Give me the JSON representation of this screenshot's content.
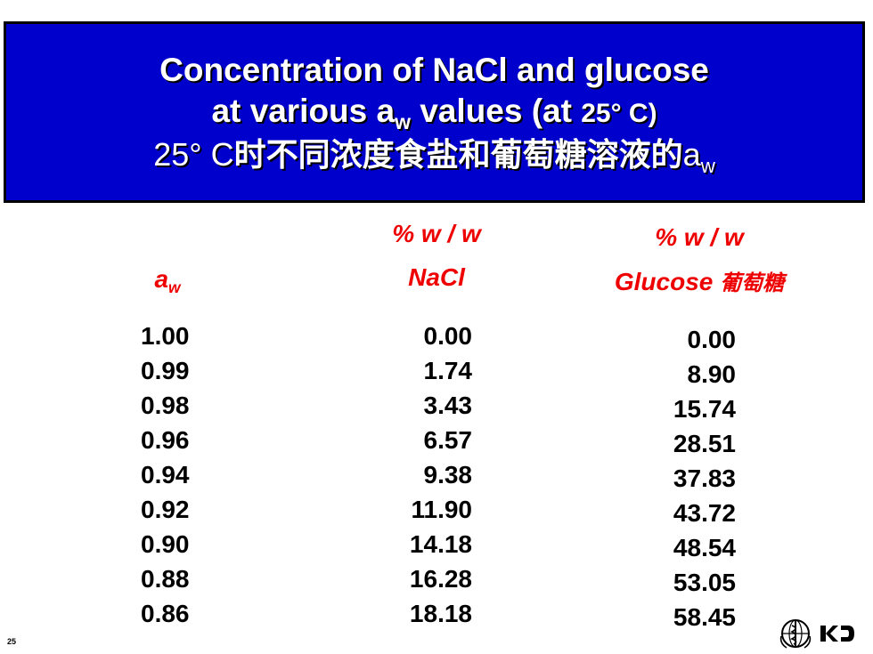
{
  "title": {
    "line1": "Concentration of NaCl and glucose",
    "line2_prefix": "at various a",
    "line2_sub": "w",
    "line2_mid": " values (at ",
    "line2_temp": "25°  C)",
    "line3_temp": "25°  C",
    "line3_text": "时不同浓度食盐和葡萄糖溶液的",
    "line3_a": "a",
    "line3_sub": "w"
  },
  "table": {
    "headers": {
      "aw_main": "a",
      "aw_sub": "w",
      "nacl_unit": "% w / w",
      "nacl_label": "NaCl",
      "glucose_unit": "% w / w",
      "glucose_label": "Glucose",
      "glucose_cn": "葡萄糖"
    },
    "aw": [
      "1.00",
      "0.99",
      "0.98",
      "0.96",
      "0.94",
      "0.92",
      "0.90",
      "0.88",
      "0.86"
    ],
    "nacl": [
      "0.00",
      "1.74",
      "3.43",
      "6.57",
      "9.38",
      "11.90",
      "14.18",
      "16.28",
      "18.18"
    ],
    "glucose": [
      "0.00",
      "8.90",
      "15.74",
      "28.51",
      "37.83",
      "43.72",
      "48.54",
      "53.05",
      "58.45"
    ]
  },
  "footer": {
    "page_number": "25"
  },
  "colors": {
    "title_bg": "#0000cc",
    "header_red": "#ee0000"
  },
  "icons": [
    "who-emblem-icon",
    "kcd-logo-icon"
  ]
}
